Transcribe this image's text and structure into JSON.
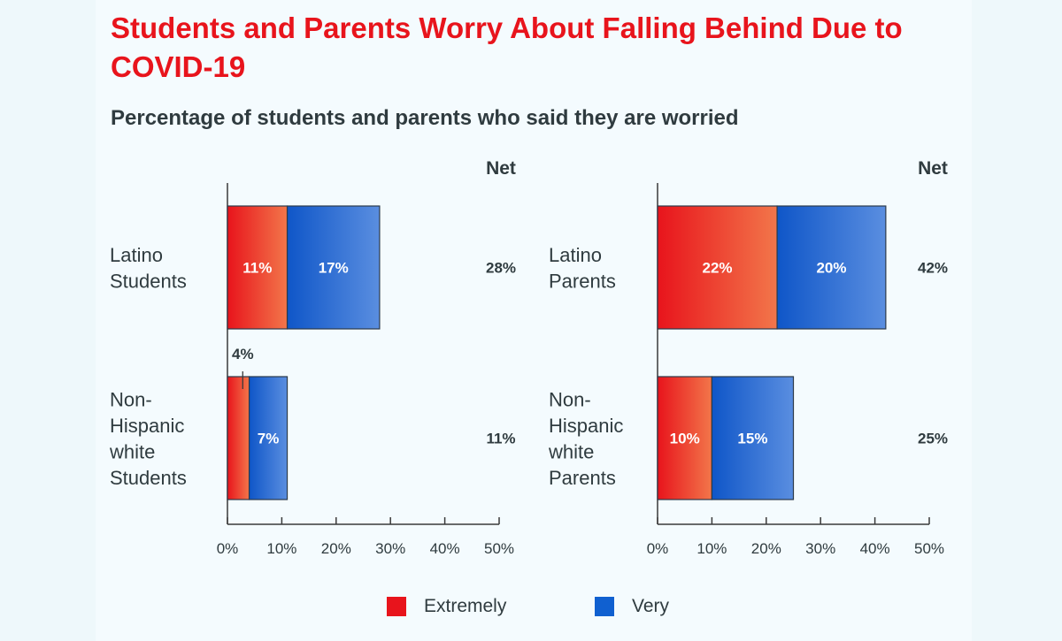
{
  "title": "Students and Parents Worry About Falling Behind Due to COVID-19",
  "subtitle": "Percentage of students and parents who said they are worried",
  "colors": {
    "extremely_start": "#e8141c",
    "extremely_end": "#f2764a",
    "very_start": "#0f56c8",
    "very_end": "#5a8ee0",
    "text": "#2f3b3f",
    "axis": "#3a3a3a"
  },
  "legend": [
    {
      "label": "Extremely",
      "color": "#e8141c"
    },
    {
      "label": "Very",
      "color": "#1060d0"
    }
  ],
  "chart_data": [
    {
      "type": "bar",
      "orientation": "horizontal",
      "stacked": true,
      "net_header": "Net",
      "categories": [
        {
          "label_lines": [
            "Latino",
            "Students"
          ],
          "net_label": "28%"
        },
        {
          "label_lines": [
            "Non-",
            "Hispanic",
            "white",
            "Students"
          ],
          "net_label": "11%"
        }
      ],
      "series": [
        {
          "name": "Extremely",
          "values": [
            11,
            4
          ],
          "labels": [
            "11%",
            "4%"
          ]
        },
        {
          "name": "Very",
          "values": [
            17,
            7
          ],
          "labels": [
            "17%",
            "7%"
          ]
        }
      ],
      "xlim": [
        0,
        50
      ],
      "xticks": [
        "0%",
        "10%",
        "20%",
        "30%",
        "40%",
        "50%"
      ]
    },
    {
      "type": "bar",
      "orientation": "horizontal",
      "stacked": true,
      "net_header": "Net",
      "categories": [
        {
          "label_lines": [
            "Latino",
            "Parents"
          ],
          "net_label": "42%"
        },
        {
          "label_lines": [
            "Non-",
            "Hispanic",
            "white",
            "Parents"
          ],
          "net_label": "25%"
        }
      ],
      "series": [
        {
          "name": "Extremely",
          "values": [
            22,
            10
          ],
          "labels": [
            "22%",
            "10%"
          ]
        },
        {
          "name": "Very",
          "values": [
            20,
            15
          ],
          "labels": [
            "20%",
            "15%"
          ]
        }
      ],
      "xlim": [
        0,
        50
      ],
      "xticks": [
        "0%",
        "10%",
        "20%",
        "30%",
        "40%",
        "50%"
      ]
    }
  ]
}
